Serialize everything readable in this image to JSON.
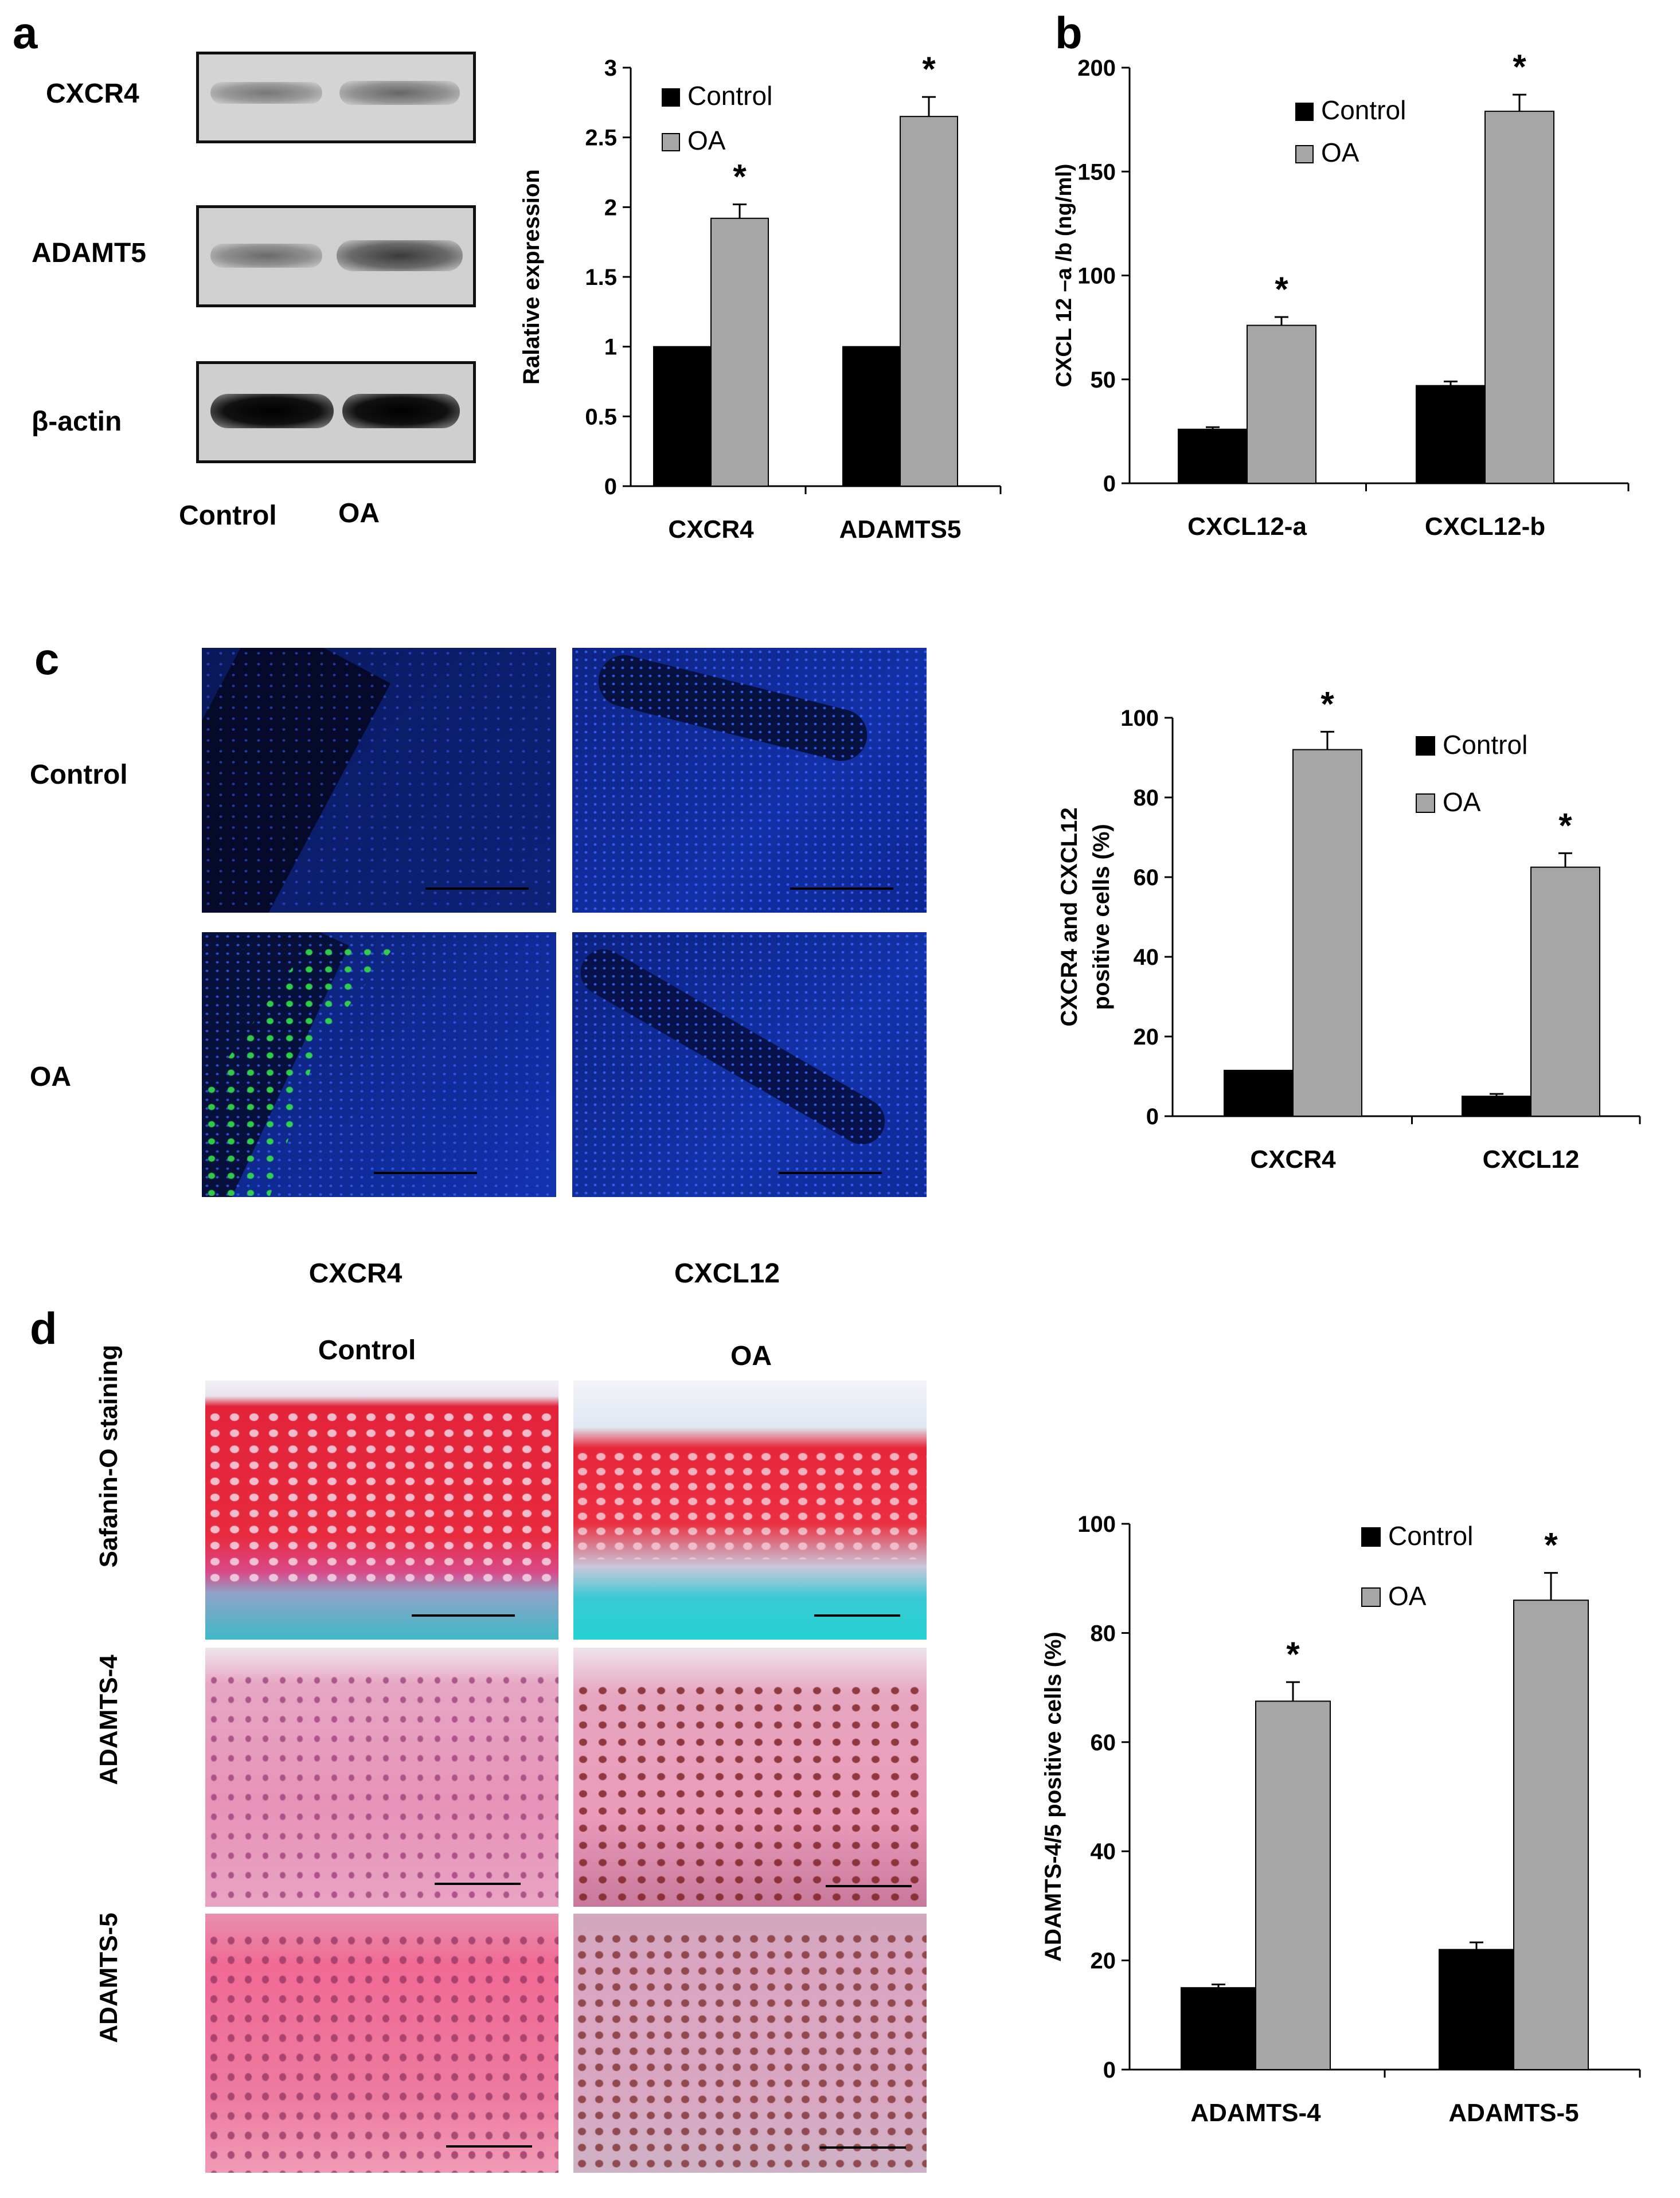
{
  "panels": {
    "a": {
      "letter": "a",
      "blot_labels": [
        "CXCR4",
        "ADAMT5",
        "β-actin"
      ],
      "lane_labels": [
        "Control",
        "OA"
      ]
    },
    "b": {
      "letter": "b"
    },
    "c": {
      "letter": "c",
      "row_labels": [
        "Control",
        "OA"
      ]
    },
    "d": {
      "letter": "d",
      "col_headers": [
        "CXCR4",
        "CXCL12"
      ],
      "group_headers": [
        "Control",
        "OA"
      ],
      "row_labels": [
        "Safanin-O staining",
        "ADAMTS-4",
        "ADAMTS-5"
      ]
    }
  },
  "colors": {
    "control": "#000000",
    "oa": "#a6a6a6",
    "fluor_bg": "#0a1a5c",
    "fluor_green": "#2bd13a",
    "safranin_red": "#e2233a",
    "fast_green": "#35c6c9",
    "ihc_pink": "#e58fb4"
  },
  "chart_data": [
    {
      "id": "chart-a",
      "type": "bar",
      "categories": [
        "CXCR4",
        "ADAMTS5"
      ],
      "series": [
        {
          "name": "Control",
          "values": [
            1.0,
            1.0
          ],
          "errors": [
            0,
            0
          ]
        },
        {
          "name": "OA",
          "values": [
            1.92,
            2.65
          ],
          "errors": [
            0.1,
            0.14
          ]
        }
      ],
      "significance": [
        "*",
        "*"
      ],
      "ylabel": "Ralative expression",
      "xlabel": "",
      "ylim": [
        0,
        3
      ],
      "yticks": [
        "0",
        "0.5",
        "1",
        "1.5",
        "2",
        "2.5",
        "3"
      ],
      "legend": "top-left",
      "grid": false
    },
    {
      "id": "chart-b",
      "type": "bar",
      "categories": [
        "CXCL12-a",
        "CXCL12-b"
      ],
      "series": [
        {
          "name": "Control",
          "values": [
            26,
            47
          ],
          "errors": [
            1,
            2
          ]
        },
        {
          "name": "OA",
          "values": [
            76,
            179
          ],
          "errors": [
            4,
            8
          ]
        }
      ],
      "significance": [
        "*",
        "*"
      ],
      "ylabel": "CXCL 12 –a /b (ng/ml)",
      "xlabel": "",
      "ylim": [
        0,
        200
      ],
      "yticks": [
        "0",
        "50",
        "100",
        "150",
        "200"
      ],
      "legend": "top-left",
      "grid": false
    },
    {
      "id": "chart-c",
      "type": "bar",
      "categories": [
        "CXCR4",
        "CXCL12"
      ],
      "series": [
        {
          "name": "Control",
          "values": [
            11.5,
            5
          ],
          "errors": [
            0,
            0.6
          ]
        },
        {
          "name": "OA",
          "values": [
            92,
            62.5
          ],
          "errors": [
            4.5,
            3.5
          ]
        }
      ],
      "significance": [
        "*",
        "*"
      ],
      "ylabel_lines": [
        "CXCR4 and CXCL12",
        "positive cells (%)"
      ],
      "xlabel": "",
      "ylim": [
        0,
        100
      ],
      "yticks": [
        "0",
        "20",
        "40",
        "60",
        "80",
        "100"
      ],
      "legend": "top-right",
      "grid": false
    },
    {
      "id": "chart-d",
      "type": "bar",
      "categories": [
        "ADAMTS-4",
        "ADAMTS-5"
      ],
      "series": [
        {
          "name": "Control",
          "values": [
            15,
            22
          ],
          "errors": [
            0.6,
            1.3
          ]
        },
        {
          "name": "OA",
          "values": [
            67.5,
            86
          ],
          "errors": [
            3.5,
            5
          ]
        }
      ],
      "significance": [
        "*",
        "*"
      ],
      "ylabel": "ADAMTS-4/5 positive cells (%)",
      "xlabel": "",
      "ylim": [
        0,
        100
      ],
      "yticks": [
        "0",
        "20",
        "40",
        "60",
        "80",
        "100"
      ],
      "legend": "top-right",
      "grid": false
    }
  ]
}
